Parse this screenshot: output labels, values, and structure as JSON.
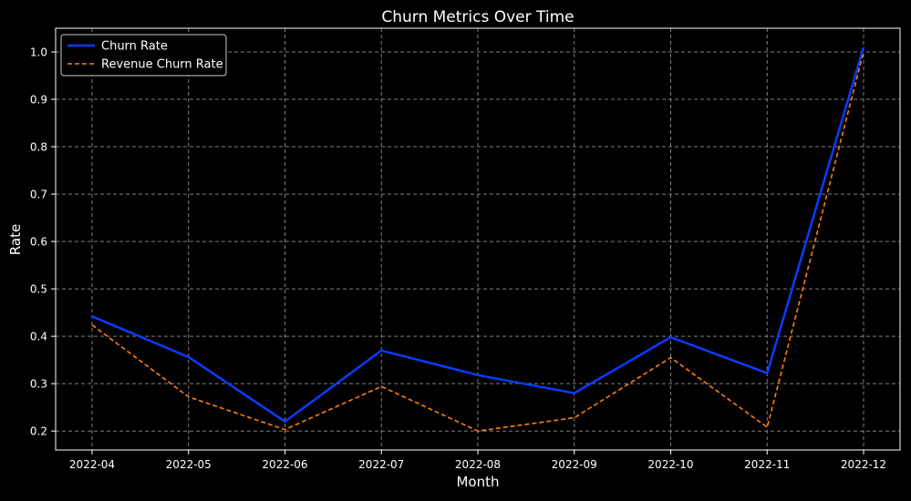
{
  "chart_data": {
    "type": "line",
    "title": "Churn Metrics Over Time",
    "xlabel": "Month",
    "ylabel": "Rate",
    "categories": [
      "2022-04",
      "2022-05",
      "2022-06",
      "2022-07",
      "2022-08",
      "2022-09",
      "2022-10",
      "2022-11",
      "2022-12"
    ],
    "series": [
      {
        "name": "Churn Rate",
        "style": "solid",
        "color": "#0a3cff",
        "values": [
          0.442,
          0.356,
          0.22,
          0.37,
          0.318,
          0.28,
          0.398,
          0.322,
          1.01
        ]
      },
      {
        "name": "Revenue Churn Rate",
        "style": "dashed",
        "color": "#ff7f0e",
        "values": [
          0.424,
          0.272,
          0.203,
          0.294,
          0.2,
          0.228,
          0.355,
          0.208,
          1.0
        ]
      }
    ],
    "yticks": [
      "0.2",
      "0.3",
      "0.4",
      "0.5",
      "0.6",
      "0.7",
      "0.8",
      "0.9",
      "1.0"
    ],
    "ylim": [
      0.16,
      1.05
    ],
    "grid": true,
    "legend_position": "top-left",
    "colors": {
      "background": "#000000",
      "axis": "#ffffff",
      "grid": "#7f7f7f",
      "text": "#ffffff"
    }
  }
}
